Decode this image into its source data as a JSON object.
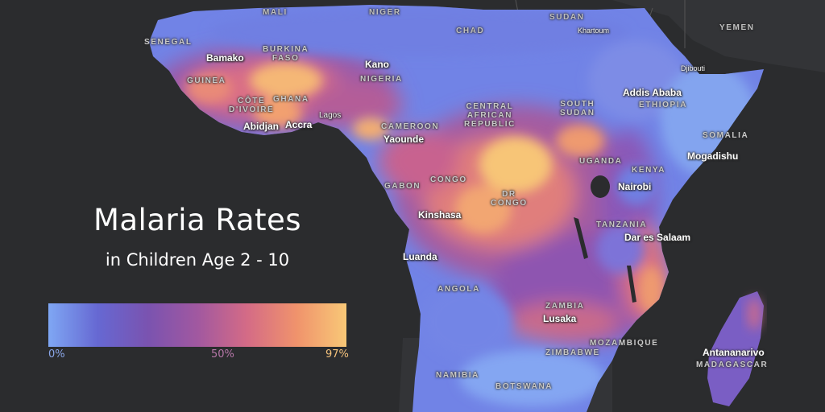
{
  "title": "Malaria Rates",
  "subtitle": "in Children Age 2 - 10",
  "legend": {
    "ticks": [
      {
        "label": "0%",
        "color": "#8aa6e8"
      },
      {
        "label": "50%",
        "color": "#b676a8"
      },
      {
        "label": "97%",
        "color": "#f4c27c"
      }
    ],
    "gradient": [
      "#7fa7f4",
      "#6668d2",
      "#7a53b0",
      "#a158a0",
      "#d46b86",
      "#f0936c",
      "#f8c877"
    ]
  },
  "countries": {
    "mali": "MALI",
    "niger": "NIGER",
    "chad": "CHAD",
    "sudan": "SUDAN",
    "yemen": "YEMEN",
    "senegal": "SENEGAL",
    "burkina_faso": "BURKINA\nFASO",
    "guinea": "GUINEA",
    "cote_divoire": "CÔTE\nD'IVOIRE",
    "ghana": "GHANA",
    "nigeria": "NIGERIA",
    "cameroon": "CAMEROON",
    "car": "CENTRAL\nAFRICAN\nREPUBLIC",
    "south_sudan": "SOUTH\nSUDAN",
    "ethiopia": "ETHIOPIA",
    "somalia": "SOMALIA",
    "gabon": "GABON",
    "congo": "CONGO",
    "dr_congo": "DR\nCONGO",
    "uganda": "UGANDA",
    "kenya": "KENYA",
    "tanzania": "TANZANIA",
    "angola": "ANGOLA",
    "zambia": "ZAMBIA",
    "zimbabwe": "ZIMBABWE",
    "mozambique": "MOZAMBIQUE",
    "namibia": "NAMIBIA",
    "botswana": "BOTSWANA",
    "madagascar": "MADAGASCAR"
  },
  "cities": {
    "bamako": "Bamako",
    "kano": "Kano",
    "khartoum": "Khartoum",
    "djibouti": "Djibouti",
    "addis_ababa": "Addis Ababa",
    "abidjan": "Abidjan",
    "accra": "Accra",
    "lagos": "Lagos",
    "yaounde": "Yaounde",
    "mogadishu": "Mogadishu",
    "nairobi": "Nairobi",
    "kinshasa": "Kinshasa",
    "dar_es_salaam": "Dar es Salaam",
    "luanda": "Luanda",
    "lusaka": "Lusaka",
    "antananarivo": "Antananarivo"
  }
}
